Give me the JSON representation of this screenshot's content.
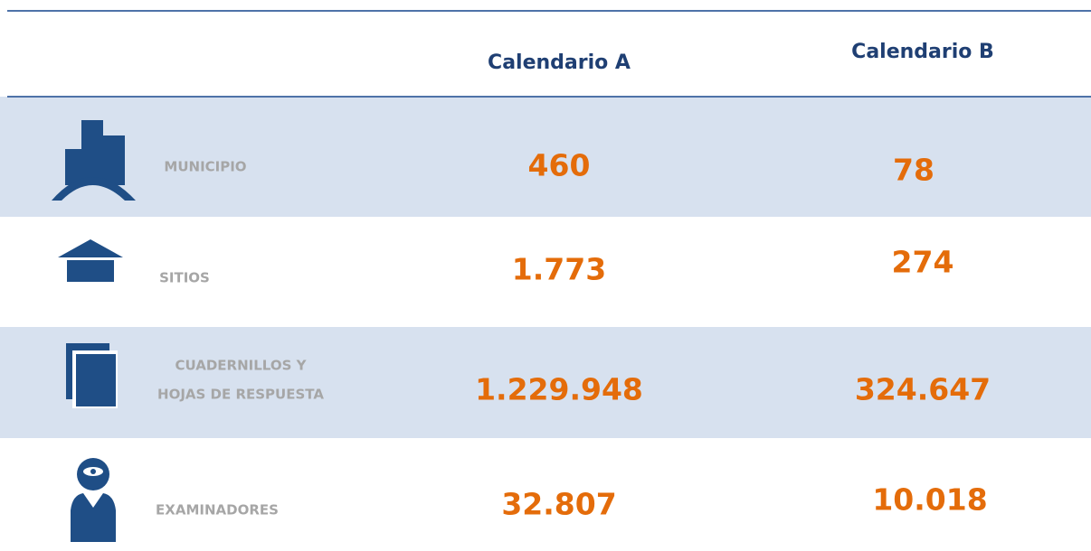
{
  "table": {
    "header": [
      "Calendario A",
      "Calendario B"
    ],
    "rows": [
      {
        "label": [
          "MUNICIPIO"
        ],
        "values": [
          "460",
          "78"
        ]
      },
      {
        "label": [
          "SITIOS"
        ],
        "values": [
          "1.773",
          "274"
        ]
      },
      {
        "label": [
          "CUADERNILLOS Y",
          "HOJAS DE RESPUESTA"
        ],
        "values": [
          "1.229.948",
          "324.647"
        ]
      },
      {
        "label": [
          "EXAMINADORES"
        ],
        "values": [
          "32.807",
          "10.018"
        ]
      }
    ]
  }
}
